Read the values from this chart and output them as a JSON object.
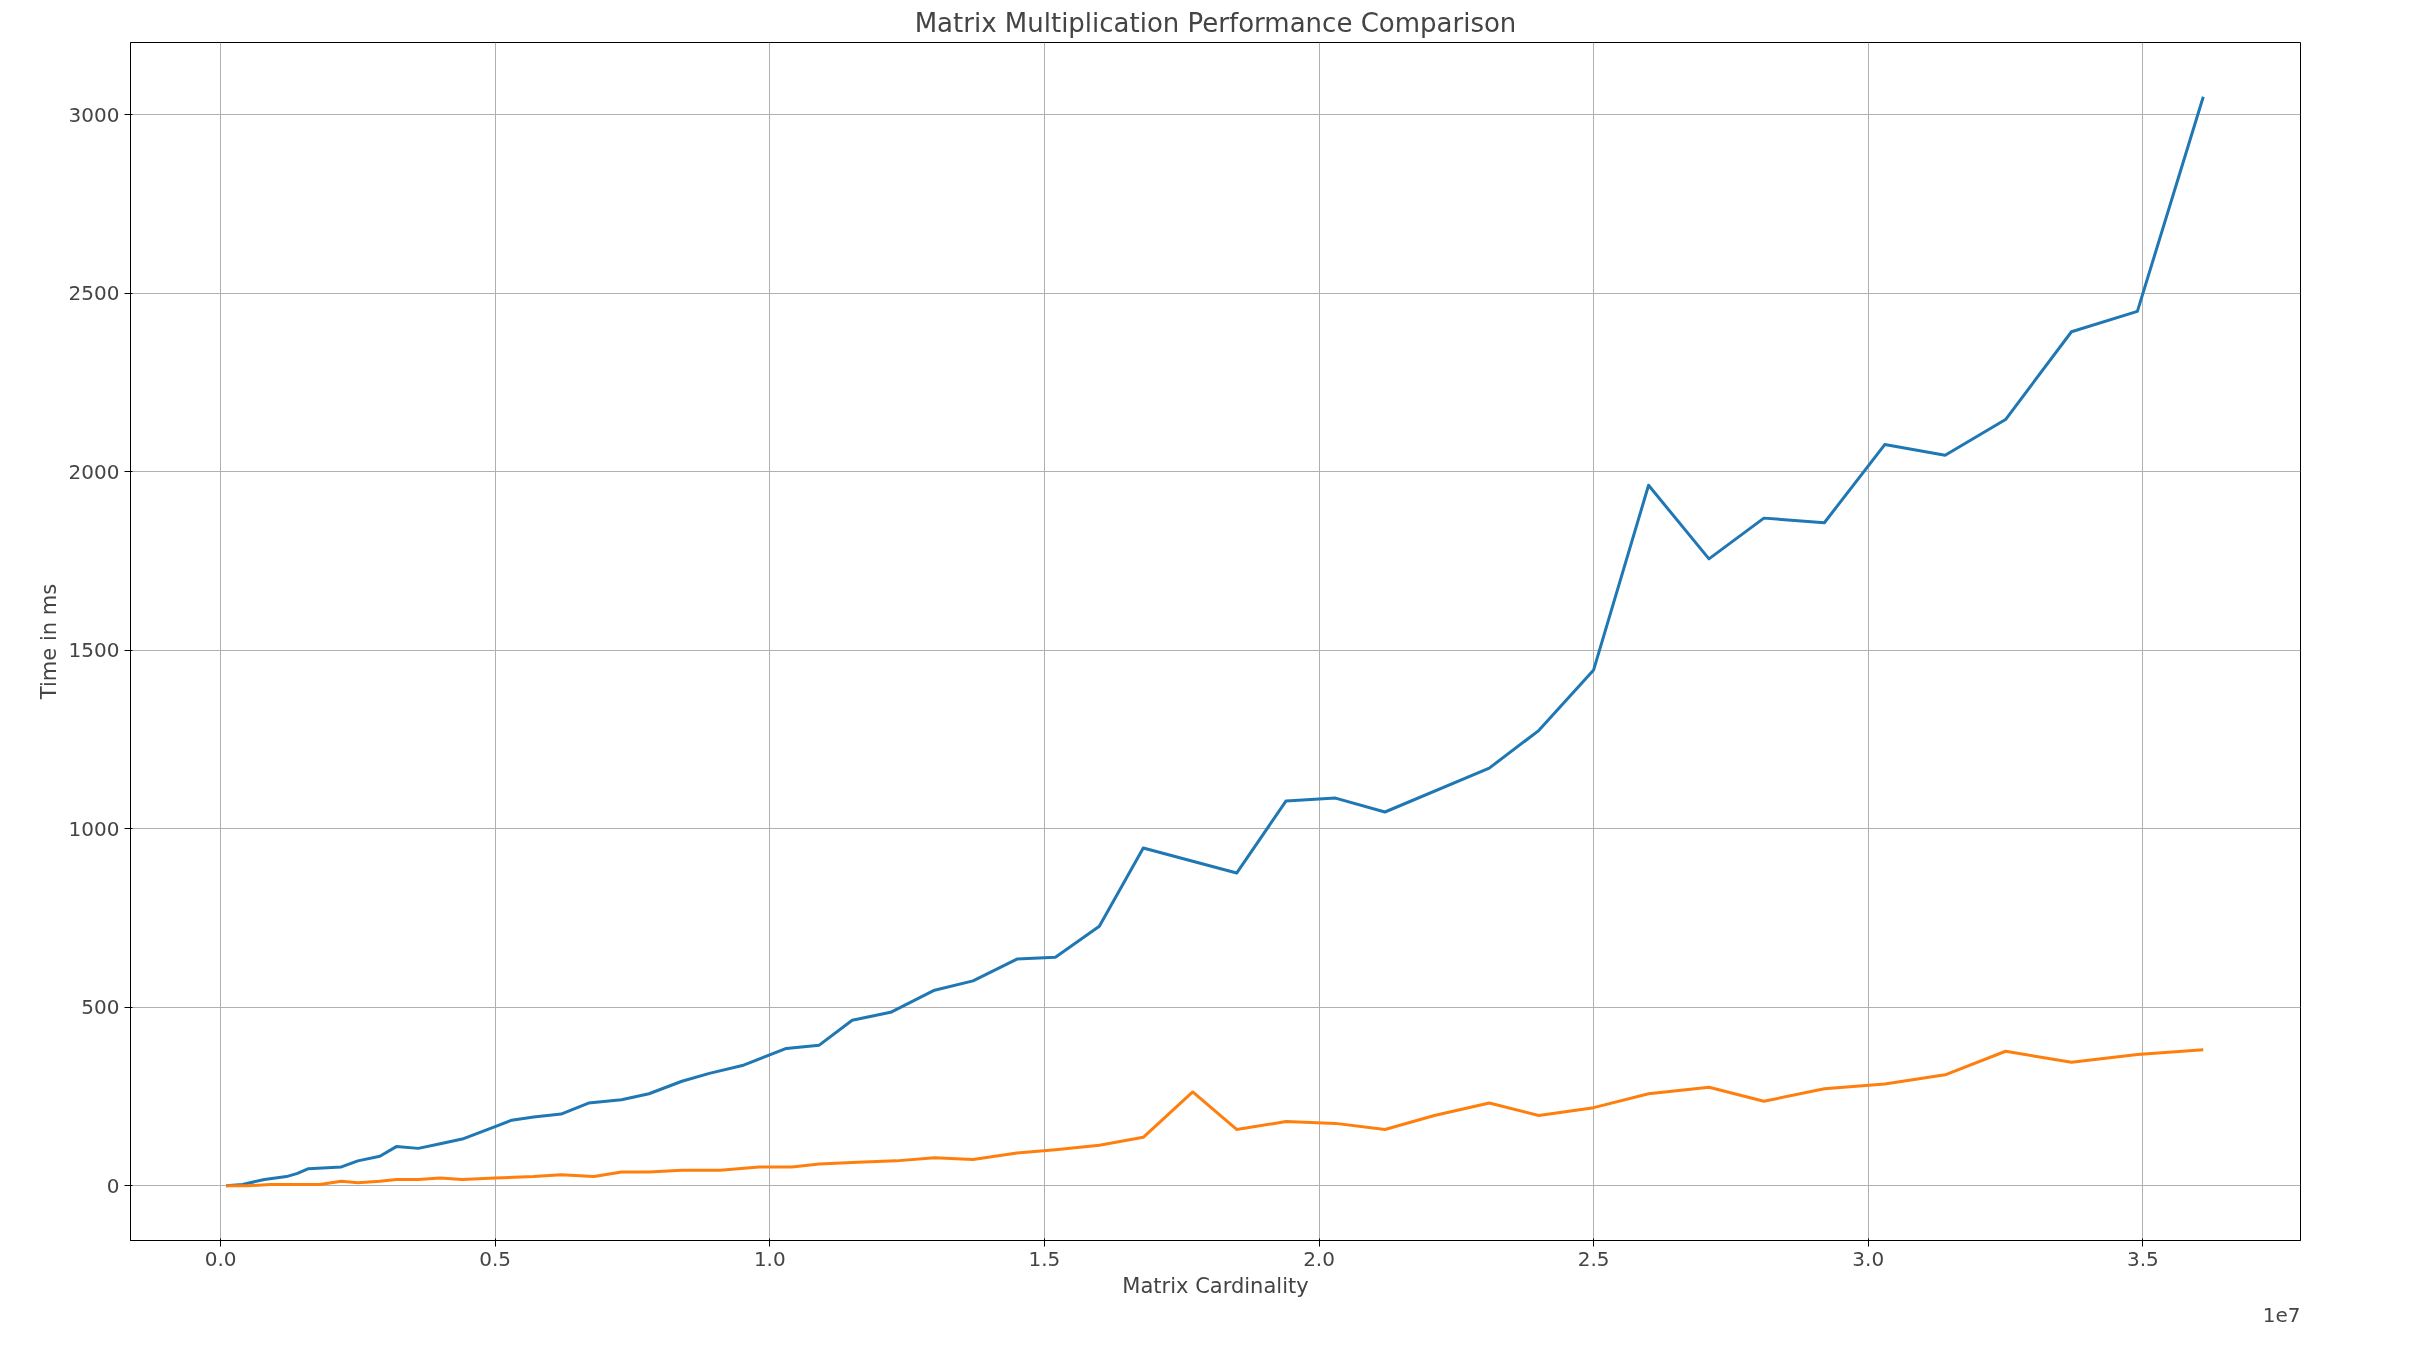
{
  "chart_data": {
    "type": "line",
    "title": "Matrix Multiplication Performance Comparison",
    "xlabel": "Matrix Cardinality",
    "ylabel": "Time in ms",
    "annotations": [
      "1e7"
    ],
    "xlim": [
      -0.164,
      3.787
    ],
    "ylim": [
      -153,
      3202
    ],
    "xticks": [
      {
        "value": 0,
        "label": "0.0"
      },
      {
        "value": 0.5,
        "label": "0.5"
      },
      {
        "value": 1,
        "label": "1.0"
      },
      {
        "value": 1.5,
        "label": "1.5"
      },
      {
        "value": 2,
        "label": "2.0"
      },
      {
        "value": 2.5,
        "label": "2.5"
      },
      {
        "value": 3,
        "label": "3.0"
      },
      {
        "value": 3.5,
        "label": "3.5"
      }
    ],
    "yticks": [
      0,
      500,
      1000,
      1500,
      2000,
      2500,
      3000
    ],
    "grid": true,
    "series": [
      {
        "color": "#1f77b4",
        "x": [
          0.01,
          0.04,
          0.08,
          0.12,
          0.14,
          0.16,
          0.22,
          0.25,
          0.29,
          0.32,
          0.36,
          0.4,
          0.44,
          0.5,
          0.53,
          0.57,
          0.62,
          0.67,
          0.73,
          0.78,
          0.84,
          0.89,
          0.95,
          1.03,
          1.09,
          1.15,
          1.22,
          1.3,
          1.37,
          1.45,
          1.52,
          1.6,
          1.68,
          1.85,
          1.94,
          2.03,
          2.12,
          2.31,
          2.4,
          2.5,
          2.6,
          2.71,
          2.81,
          2.92,
          3.03,
          3.14,
          3.25,
          3.37,
          3.49,
          3.61
        ],
        "values": [
          0,
          4,
          18,
          26,
          35,
          48,
          53,
          70,
          83,
          110,
          105,
          118,
          131,
          166,
          184,
          193,
          201,
          232,
          241,
          258,
          293,
          315,
          337,
          385,
          394,
          464,
          486,
          548,
          574,
          635,
          640,
          727,
          946,
          876,
          1078,
          1086,
          1047,
          1170,
          1275,
          1445,
          1962,
          1756,
          1870,
          1857,
          2076,
          2046,
          2146,
          2392,
          2449,
          3050
        ]
      },
      {
        "color": "#ff7f0e",
        "x": [
          0.01,
          0.05,
          0.09,
          0.13,
          0.18,
          0.22,
          0.25,
          0.29,
          0.32,
          0.36,
          0.4,
          0.44,
          0.5,
          0.57,
          0.62,
          0.68,
          0.73,
          0.78,
          0.84,
          0.91,
          0.98,
          1.04,
          1.09,
          1.16,
          1.23,
          1.3,
          1.37,
          1.45,
          1.52,
          1.6,
          1.68,
          1.77,
          1.85,
          1.94,
          2.03,
          2.12,
          2.21,
          2.31,
          2.4,
          2.5,
          2.6,
          2.71,
          2.81,
          2.92,
          3.03,
          3.14,
          3.25,
          3.37,
          3.49,
          3.61
        ],
        "values": [
          0,
          0,
          4,
          4,
          4,
          13,
          9,
          13,
          18,
          18,
          22,
          18,
          22,
          26,
          31,
          26,
          39,
          39,
          44,
          44,
          53,
          53,
          61,
          66,
          70,
          79,
          74,
          92,
          101,
          114,
          136,
          263,
          158,
          180,
          175,
          158,
          197,
          232,
          197,
          219,
          258,
          276,
          237,
          272,
          285,
          311,
          377,
          346,
          368,
          381
        ]
      }
    ]
  }
}
